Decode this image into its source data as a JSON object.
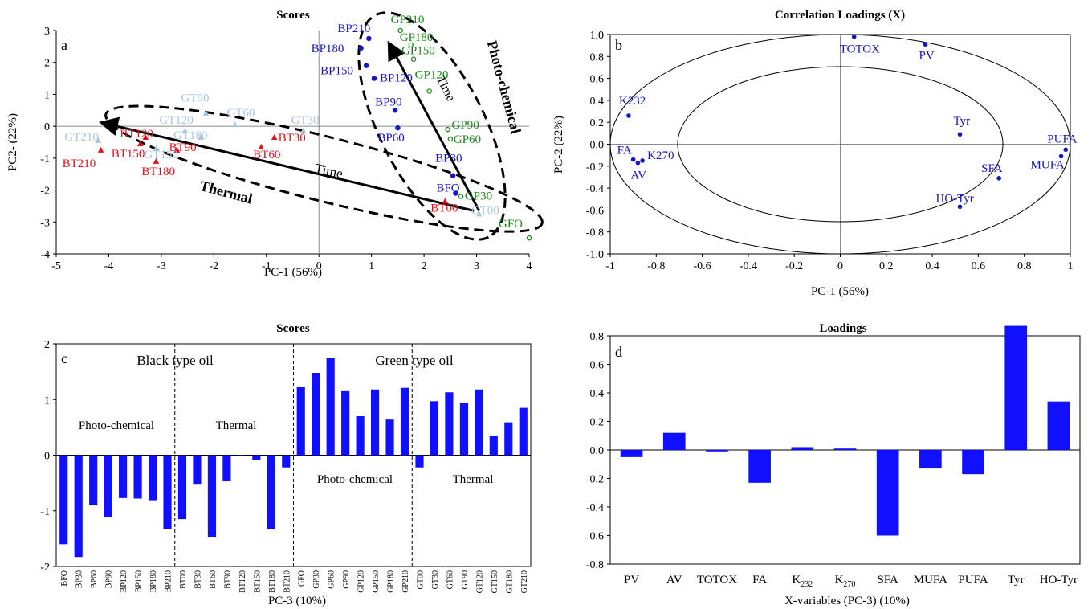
{
  "colors": {
    "black_type": "#1414c8",
    "green_type": "#178a17",
    "thermal_red": "#e8101a",
    "thermal_light": "#a9c6e3",
    "bars": "#1010ff",
    "axis": "#000000",
    "guide": "#8c8c8c"
  },
  "chart_data": [
    {
      "panel": "a",
      "type": "scatter",
      "title": "Scores",
      "xlabel": "PC-1 (56%)",
      "ylabel": "PC2- (22%)",
      "xlim": [
        -5,
        4
      ],
      "ylim": [
        -4,
        3
      ],
      "xticks": [
        "-5",
        "-4",
        "-3",
        "-2",
        "-1",
        "0",
        "1",
        "2",
        "3",
        "4"
      ],
      "yticks": [
        "-4",
        "-3",
        "-2",
        "-1",
        "0",
        "1",
        "2",
        "3"
      ],
      "series": [
        {
          "group": "black_photo",
          "points": [
            {
              "label": "BFO",
              "x": 2.6,
              "y": -2.1
            },
            {
              "label": "BP30",
              "x": 2.55,
              "y": -1.55
            },
            {
              "label": "BP60",
              "x": 1.5,
              "y": -0.05
            },
            {
              "label": "BP90",
              "x": 1.45,
              "y": 0.5
            },
            {
              "label": "BP120",
              "x": 1.05,
              "y": 1.5
            },
            {
              "label": "BP150",
              "x": 0.9,
              "y": 1.9
            },
            {
              "label": "BP180",
              "x": 0.8,
              "y": 2.45
            },
            {
              "label": "BP210",
              "x": 0.95,
              "y": 2.75
            }
          ]
        },
        {
          "group": "green_photo",
          "points": [
            {
              "label": "GFO",
              "x": 4.0,
              "y": -3.5
            },
            {
              "label": "GP30",
              "x": 2.7,
              "y": -2.2
            },
            {
              "label": "GP60",
              "x": 2.5,
              "y": -0.4
            },
            {
              "label": "GP90",
              "x": 2.45,
              "y": -0.1
            },
            {
              "label": "GP120",
              "x": 2.1,
              "y": 1.1
            },
            {
              "label": "GP150",
              "x": 1.8,
              "y": 2.1
            },
            {
              "label": "GP180",
              "x": 1.75,
              "y": 2.55
            },
            {
              "label": "GP210",
              "x": 1.55,
              "y": 3.0
            }
          ]
        },
        {
          "group": "black_thermal",
          "points": [
            {
              "label": "BT00",
              "x": 2.4,
              "y": -2.35
            },
            {
              "label": "BT30",
              "x": -0.85,
              "y": -0.35
            },
            {
              "label": "BT60",
              "x": -1.1,
              "y": -0.65
            },
            {
              "label": "BT90",
              "x": -2.7,
              "y": -0.75
            },
            {
              "label": "BT120",
              "x": -3.3,
              "y": -0.35
            },
            {
              "label": "BT150",
              "x": -3.4,
              "y": -0.55
            },
            {
              "label": "BT180",
              "x": -3.1,
              "y": -1.1
            },
            {
              "label": "BT210",
              "x": -4.15,
              "y": -0.75
            }
          ]
        },
        {
          "group": "green_thermal",
          "points": [
            {
              "label": "GT00",
              "x": 3.05,
              "y": -2.75
            },
            {
              "label": "GT30",
              "x": -0.3,
              "y": -0.15
            },
            {
              "label": "GT60",
              "x": -1.6,
              "y": 0.05
            },
            {
              "label": "GT90",
              "x": -2.15,
              "y": 0.4
            },
            {
              "label": "GT120",
              "x": -2.55,
              "y": -0.15
            },
            {
              "label": "GT150",
              "x": -3.1,
              "y": -0.7
            },
            {
              "label": "GT180",
              "x": -2.25,
              "y": -0.35
            },
            {
              "label": "GT210",
              "x": -4.2,
              "y": -0.45
            }
          ]
        }
      ],
      "annotations": {
        "photo": "Photo-chemical",
        "thermal": "Thermal",
        "time": "Time"
      }
    },
    {
      "panel": "b",
      "type": "scatter",
      "title": "Correlation Loadings (X)",
      "xlabel": "PC-1 (56%)",
      "ylabel": "PC-2 (22%)",
      "xlim": [
        -1,
        1
      ],
      "ylim": [
        -1,
        1
      ],
      "xticks": [
        "-1",
        "-0.8",
        "-0.6",
        "-0.4",
        "-0.2",
        "0",
        "0.2",
        "0.4",
        "0.6",
        "0.8",
        "1"
      ],
      "yticks": [
        "-1.0",
        "-0.8",
        "-0.6",
        "-0.4",
        "-0.2",
        "0.0",
        "0.2",
        "0.4",
        "0.6",
        "0.8",
        "1.0"
      ],
      "points": [
        {
          "label": "TOTOX",
          "x": 0.06,
          "y": 0.98
        },
        {
          "label": "PV",
          "x": 0.37,
          "y": 0.91
        },
        {
          "label": "K232",
          "x": -0.92,
          "y": 0.26
        },
        {
          "label": "Tyr",
          "x": 0.52,
          "y": 0.09
        },
        {
          "label": "PUFA",
          "x": 0.98,
          "y": -0.05
        },
        {
          "label": "MUFA",
          "x": 0.96,
          "y": -0.11
        },
        {
          "label": "FA",
          "x": -0.9,
          "y": -0.14
        },
        {
          "label": "K270",
          "x": -0.86,
          "y": -0.15
        },
        {
          "label": "AV",
          "x": -0.88,
          "y": -0.17
        },
        {
          "label": "SFA",
          "x": 0.69,
          "y": -0.31
        },
        {
          "label": "HO-Tyr",
          "x": 0.52,
          "y": -0.57
        }
      ]
    },
    {
      "panel": "c",
      "type": "bar",
      "title": "Scores",
      "xlabel": "PC-3 (10%)",
      "ylim": [
        -2,
        2
      ],
      "yticks": [
        "-2",
        "-1",
        "0",
        "1",
        "2"
      ],
      "categories": [
        "BFO",
        "BP30",
        "BP60",
        "BP90",
        "BP120",
        "BP150",
        "BP180",
        "BP210",
        "BT00",
        "BT30",
        "BT60",
        "BT90",
        "BT120",
        "BT150",
        "BT180",
        "BT210",
        "GFO",
        "GP30",
        "GP60",
        "GP90",
        "GP120",
        "GP150",
        "GP180",
        "GP210",
        "GT00",
        "GT30",
        "GT60",
        "GT90",
        "GT120",
        "GT150",
        "GT180",
        "GT210"
      ],
      "values": [
        -1.6,
        -1.83,
        -0.9,
        -1.12,
        -0.77,
        -0.78,
        -0.81,
        -1.33,
        -1.15,
        -0.53,
        -1.48,
        -0.47,
        0.0,
        -0.09,
        -1.33,
        -0.22,
        1.22,
        1.48,
        1.75,
        1.15,
        0.7,
        1.18,
        0.64,
        1.21,
        -0.22,
        0.97,
        1.13,
        0.94,
        1.18,
        0.34,
        0.59,
        0.85
      ],
      "annotations": {
        "black": "Black type oil",
        "green": "Green type oil",
        "photo_left": "Photo-chemical",
        "thermal_left": "Thermal",
        "photo_right": "Photo-chemical",
        "thermal_right": "Thermal"
      }
    },
    {
      "panel": "d",
      "type": "bar",
      "title": "Loadings",
      "xlabel": "X-variables (PC-3) (10%)",
      "ylim": [
        -0.8,
        0.8
      ],
      "yticks": [
        "-0.8",
        "-0.6",
        "-0.4",
        "-0.2",
        "0.0",
        "0.2",
        "0.4",
        "0.6",
        "0.8"
      ],
      "categories": [
        {
          "main": "PV",
          "sub": ""
        },
        {
          "main": "AV",
          "sub": ""
        },
        {
          "main": "TOTOX",
          "sub": ""
        },
        {
          "main": "FA",
          "sub": ""
        },
        {
          "main": "K",
          "sub": "232"
        },
        {
          "main": "K",
          "sub": "270"
        },
        {
          "main": "SFA",
          "sub": ""
        },
        {
          "main": "MUFA",
          "sub": ""
        },
        {
          "main": "PUFA",
          "sub": ""
        },
        {
          "main": "Tyr",
          "sub": ""
        },
        {
          "main": "HO-Tyr",
          "sub": ""
        }
      ],
      "values": [
        -0.05,
        0.12,
        -0.01,
        -0.23,
        0.02,
        0.01,
        -0.6,
        -0.13,
        -0.17,
        0.87,
        0.34
      ]
    }
  ]
}
